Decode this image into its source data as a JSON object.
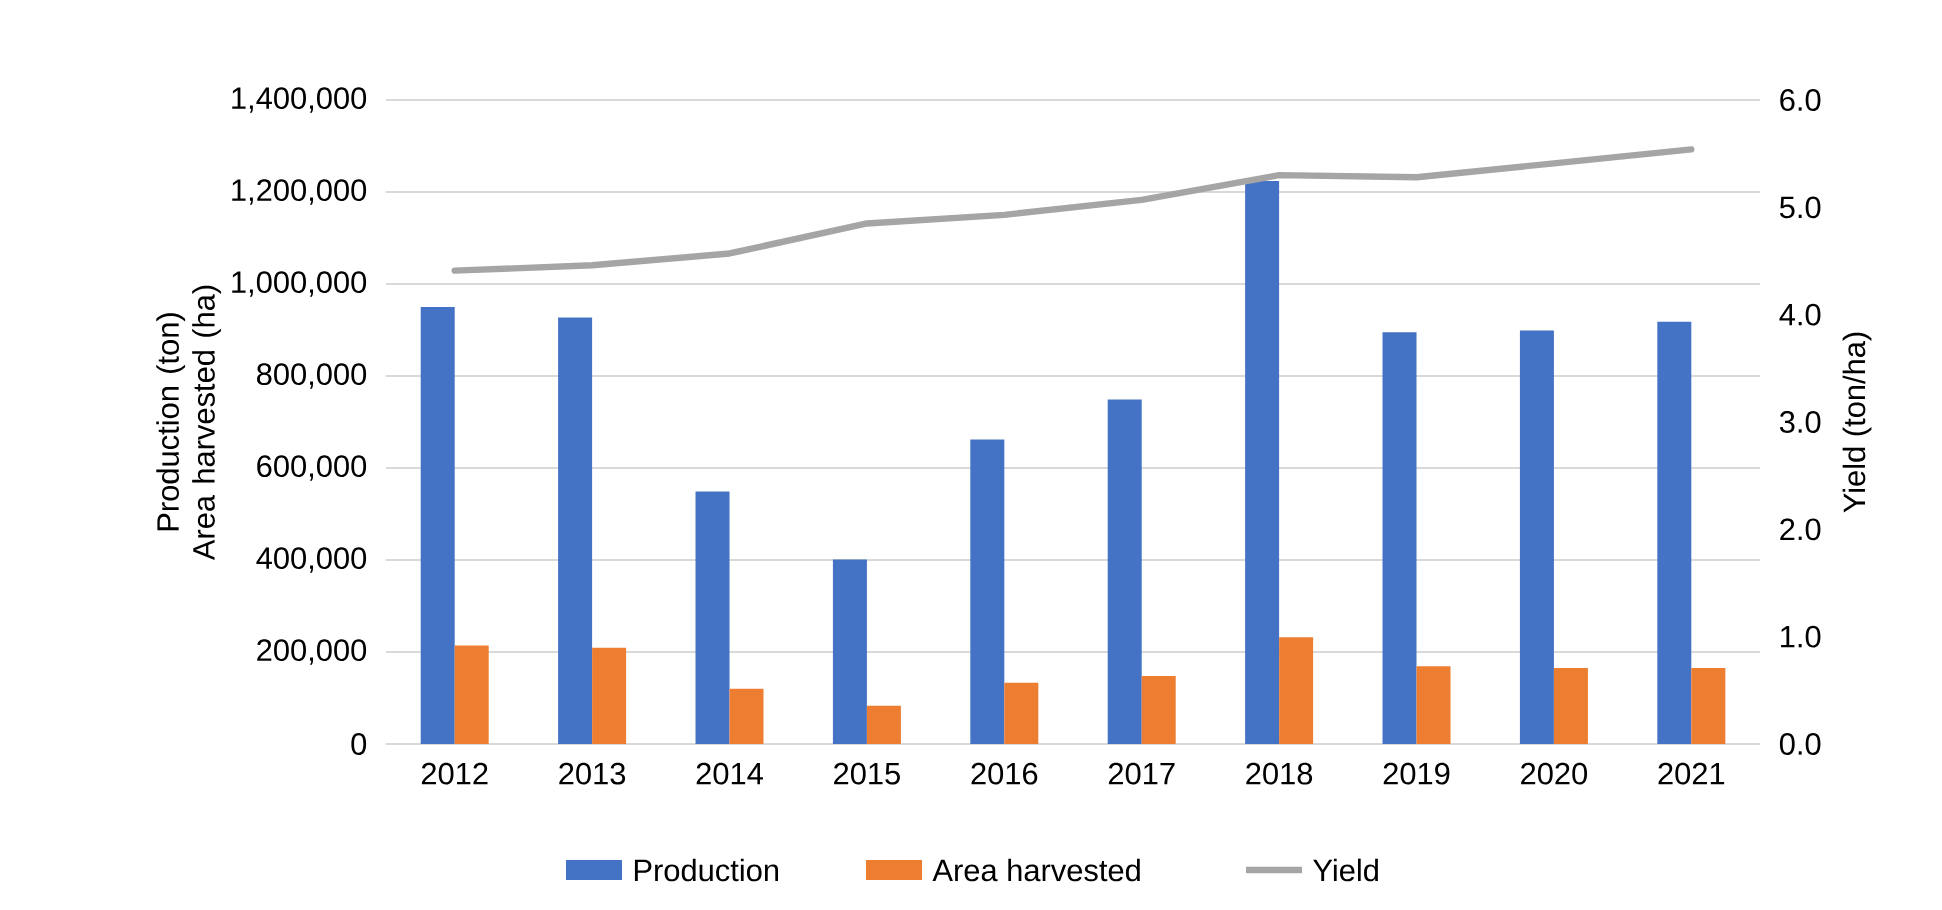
{
  "chart_data": {
    "type": "bar",
    "ylabel": "Production (ton) Area harvested (ha)",
    "y2label": "Yield (ton/ha)",
    "categories": [
      "2012",
      "2013",
      "2014",
      "2015",
      "2016",
      "2017",
      "2018",
      "2019",
      "2020",
      "2021"
    ],
    "series": [
      {
        "name": "Production",
        "color": "#4472c4",
        "values": [
          950000,
          927000,
          549000,
          401000,
          662000,
          749000,
          1224000,
          895000,
          899000,
          918000
        ]
      },
      {
        "name": "Area harvested",
        "color": "#ed7d31",
        "values": [
          214000,
          209000,
          120000,
          83000,
          133000,
          148000,
          232000,
          169000,
          165000,
          165000
        ]
      },
      {
        "name": "Yield",
        "type": "line",
        "axis": "y2",
        "color": "#a5a5a5",
        "values": [
          4.41,
          4.46,
          4.57,
          4.85,
          4.93,
          5.07,
          5.3,
          5.28,
          5.41,
          5.54
        ]
      }
    ],
    "ylim": [
      0,
      1400000
    ],
    "yticks": [
      {
        "value": 0,
        "label": "0"
      },
      {
        "value": 200000,
        "label": "200,000"
      },
      {
        "value": 400000,
        "label": "400,000"
      },
      {
        "value": 600000,
        "label": "600,000"
      },
      {
        "value": 800000,
        "label": "800,000"
      },
      {
        "value": 1000000,
        "label": "1,000,000"
      },
      {
        "value": 1200000,
        "label": "1,200,000"
      },
      {
        "value": 1400000,
        "label": "1,400,000"
      }
    ],
    "y2lim": [
      0,
      6
    ],
    "y2ticks": [
      {
        "value": 0,
        "label": "0.0"
      },
      {
        "value": 1,
        "label": "1.0"
      },
      {
        "value": 2,
        "label": "2.0"
      },
      {
        "value": 3,
        "label": "3.0"
      },
      {
        "value": 4,
        "label": "4.0"
      },
      {
        "value": 5,
        "label": "5.0"
      },
      {
        "value": 6,
        "label": "6.0"
      }
    ],
    "grid": "y",
    "legend": "bottom",
    "marker": "none"
  }
}
